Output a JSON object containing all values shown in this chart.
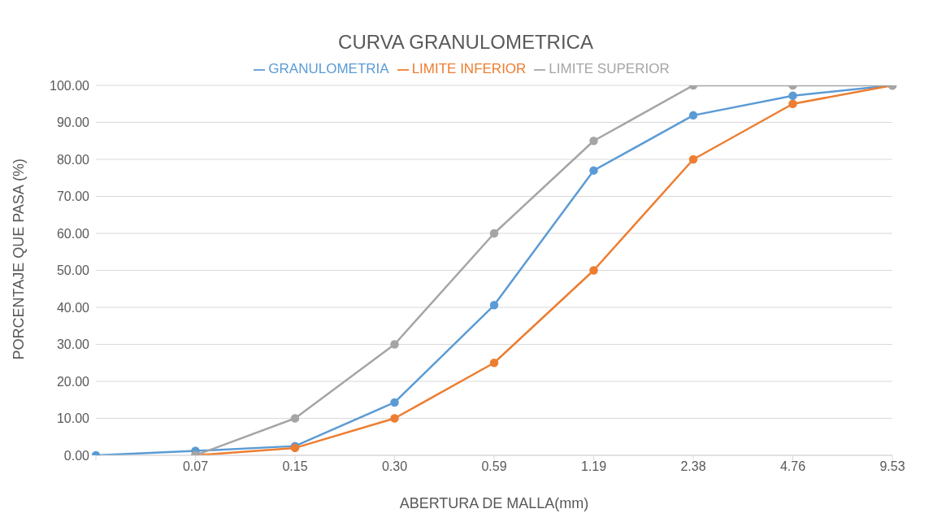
{
  "chart_data": {
    "type": "line",
    "title": "CURVA GRANULOMETRICA",
    "xlabel": "ABERTURA DE MALLA(mm)",
    "ylabel": "PORCENTAJE QUE PASA (%)",
    "categories": [
      null,
      "0.07",
      "0.15",
      "0.30",
      "0.59",
      "1.19",
      "2.38",
      "4.76",
      "9.53"
    ],
    "series": [
      {
        "name": "GRANULOMETRIA",
        "color": "#5b9bd5",
        "values": [
          0,
          1.2,
          2.5,
          14.3,
          40.6,
          77.0,
          91.9,
          97.2,
          100
        ]
      },
      {
        "name": "LIMITE INFERIOR",
        "color": "#ed7d31",
        "values": [
          null,
          0,
          2,
          10,
          25,
          50,
          80,
          95,
          100
        ]
      },
      {
        "name": "LIMITE SUPERIOR",
        "color": "#a5a5a5",
        "values": [
          null,
          0,
          10,
          30,
          60,
          85,
          100,
          100,
          100
        ]
      }
    ],
    "ylim": [
      0,
      100
    ],
    "yticks": [
      {
        "value": 0,
        "label": "0.00"
      },
      {
        "value": 10,
        "label": "10.00"
      },
      {
        "value": 20,
        "label": "20.00"
      },
      {
        "value": 30,
        "label": "30.00"
      },
      {
        "value": 40,
        "label": "40.00"
      },
      {
        "value": 50,
        "label": "50.00"
      },
      {
        "value": 60,
        "label": "60.00"
      },
      {
        "value": 70,
        "label": "70.00"
      },
      {
        "value": 80,
        "label": "80.00"
      },
      {
        "value": 90,
        "label": "90.00"
      },
      {
        "value": 100,
        "label": "100.00"
      }
    ],
    "grid": "y",
    "legend": "top",
    "marker": "circle",
    "line_style": "solid"
  }
}
